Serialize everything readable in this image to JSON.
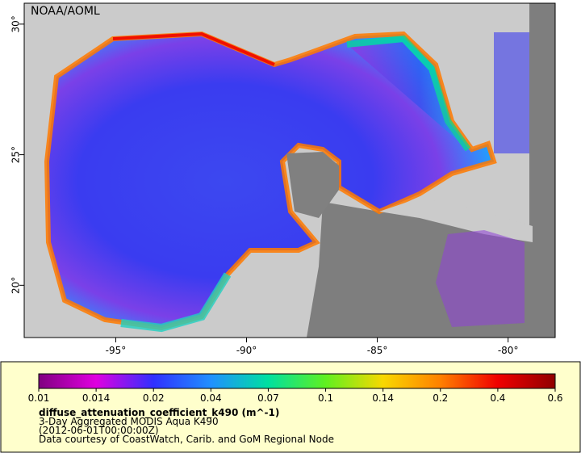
{
  "map": {
    "credit": "NOAA/AOML",
    "xlim": [
      -98.5,
      -78.2
    ],
    "ylim": [
      18.0,
      30.8
    ],
    "xticks": [
      {
        "value": -95,
        "label": "-95°"
      },
      {
        "value": -90,
        "label": "-90°"
      },
      {
        "value": -85,
        "label": "-85°"
      },
      {
        "value": -80,
        "label": "-80°"
      }
    ],
    "yticks": [
      {
        "value": 30,
        "label": "30°"
      },
      {
        "value": 25,
        "label": "25°"
      },
      {
        "value": 20,
        "label": "20°"
      }
    ]
  },
  "legend": {
    "colorbar_ticks": [
      0.01,
      0.014,
      0.02,
      0.04,
      0.07,
      0.1,
      0.14,
      0.2,
      0.4,
      0.6
    ],
    "colors": [
      "#800080",
      "#e000e0",
      "#3030ff",
      "#2090ff",
      "#00e0a0",
      "#60f020",
      "#f8d800",
      "#ff8000",
      "#f00000",
      "#900000"
    ],
    "variable": "diffuse_attenuation_coefficient_k490 (m^-1)",
    "dataset": "3-Day Aggregated MODIS Aqua K490",
    "time": "(2012-06-01T00:00:00Z)",
    "source": "Data courtesy of CoastWatch, Carib. and GoM Regional Node"
  }
}
